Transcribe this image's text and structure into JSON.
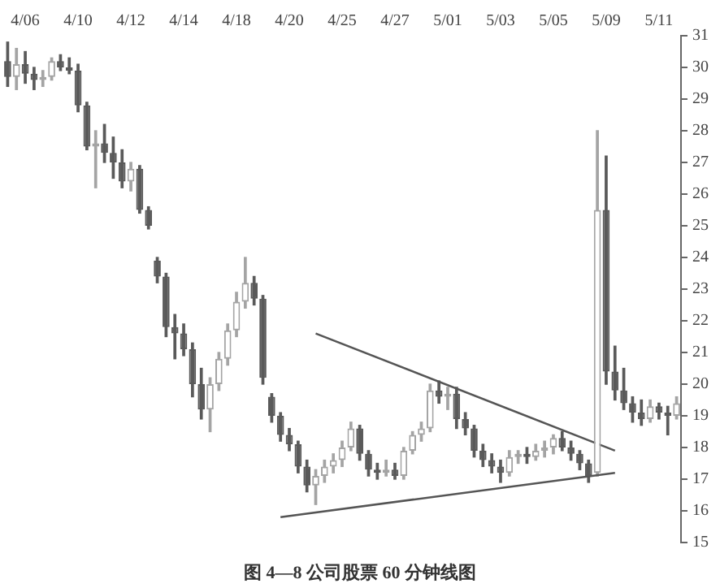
{
  "chart_data": {
    "type": "candlestick",
    "title": "图 4—8 公司股票 60 分钟线图",
    "categories": [
      null,
      null,
      "4/06",
      null,
      null,
      null,
      null,
      null,
      "4/10",
      null,
      null,
      null,
      null,
      null,
      "4/12",
      null,
      null,
      null,
      null,
      null,
      "4/14",
      null,
      null,
      null,
      null,
      null,
      "4/18",
      null,
      null,
      null,
      null,
      null,
      "4/20",
      null,
      null,
      null,
      null,
      null,
      "4/25",
      null,
      null,
      null,
      null,
      null,
      "4/27",
      null,
      null,
      null,
      null,
      null,
      "5/01",
      null,
      null,
      null,
      null,
      null,
      "5/03",
      null,
      null,
      null,
      null,
      null,
      "5/05",
      null,
      null,
      null,
      null,
      null,
      "5/09",
      null,
      null,
      null,
      null,
      null,
      "5/11",
      null,
      null
    ],
    "series": [
      {
        "type": "candlestick",
        "colors": [
          "#5a5a5a",
          "#a4a4a4",
          "#5a5a5a",
          "#5a5a5a",
          "#a4a4a4",
          "#a4a4a4",
          "#5a5a5a",
          "#5a5a5a",
          "#5a5a5a",
          "#5a5a5a",
          "#a4a4a4",
          "#5a5a5a",
          "#5a5a5a",
          "#5a5a5a",
          "#a4a4a4",
          "#5a5a5a",
          "#5a5a5a",
          "#5a5a5a",
          "#5a5a5a",
          "#5a5a5a",
          "#5a5a5a",
          "#5a5a5a",
          "#5a5a5a",
          "#a4a4a4",
          "#a4a4a4",
          "#a4a4a4",
          "#a4a4a4",
          "#a4a4a4",
          "#5a5a5a",
          "#5a5a5a",
          "#5a5a5a",
          "#5a5a5a",
          "#5a5a5a",
          "#5a5a5a",
          "#5a5a5a",
          "#a4a4a4",
          "#a4a4a4",
          "#a4a4a4",
          "#a4a4a4",
          "#a4a4a4",
          "#5a5a5a",
          "#5a5a5a",
          "#5a5a5a",
          "#a4a4a4",
          "#5a5a5a",
          "#a4a4a4",
          "#a4a4a4",
          "#a4a4a4",
          "#a4a4a4",
          "#5a5a5a",
          "#a4a4a4",
          "#5a5a5a",
          "#5a5a5a",
          "#5a5a5a",
          "#5a5a5a",
          "#5a5a5a",
          "#5a5a5a",
          "#a4a4a4",
          "#a4a4a4",
          "#5a5a5a",
          "#a4a4a4",
          "#a4a4a4",
          "#a4a4a4",
          "#5a5a5a",
          "#5a5a5a",
          "#5a5a5a",
          "#5a5a5a",
          "#a4a4a4",
          "#5a5a5a",
          "#5a5a5a",
          "#5a5a5a",
          "#5a5a5a",
          "#5a5a5a",
          "#a4a4a4",
          "#5a5a5a",
          "#5a5a5a",
          "#a4a4a4"
        ],
        "ohlc": [
          [
            30.2,
            30.8,
            29.4,
            29.7
          ],
          [
            29.7,
            30.6,
            29.3,
            30.1
          ],
          [
            30.1,
            30.5,
            29.5,
            29.8
          ],
          [
            29.8,
            30.0,
            29.3,
            29.6
          ],
          [
            29.6,
            29.9,
            29.4,
            29.7
          ],
          [
            29.7,
            30.3,
            29.6,
            30.2
          ],
          [
            30.2,
            30.4,
            29.9,
            30.0
          ],
          [
            30.0,
            30.3,
            29.8,
            29.9
          ],
          [
            29.9,
            30.1,
            28.6,
            28.8
          ],
          [
            28.8,
            28.9,
            27.4,
            27.5
          ],
          [
            27.5,
            28.0,
            26.2,
            27.6
          ],
          [
            27.6,
            28.2,
            27.0,
            27.3
          ],
          [
            27.3,
            27.8,
            26.5,
            27.0
          ],
          [
            27.0,
            27.4,
            26.2,
            26.4
          ],
          [
            26.4,
            27.0,
            26.1,
            26.8
          ],
          [
            26.8,
            26.9,
            25.4,
            25.5
          ],
          [
            25.5,
            25.6,
            24.9,
            25.0
          ],
          [
            23.9,
            24.0,
            23.2,
            23.4
          ],
          [
            23.4,
            23.5,
            21.5,
            21.8
          ],
          [
            21.8,
            22.2,
            20.8,
            21.6
          ],
          [
            21.6,
            21.9,
            20.9,
            21.1
          ],
          [
            21.1,
            21.3,
            19.6,
            20.0
          ],
          [
            20.0,
            20.5,
            18.9,
            19.2
          ],
          [
            19.2,
            20.2,
            18.5,
            20.0
          ],
          [
            20.0,
            21.0,
            19.8,
            20.8
          ],
          [
            20.8,
            21.9,
            20.6,
            21.7
          ],
          [
            21.7,
            22.9,
            21.5,
            22.6
          ],
          [
            22.6,
            24.0,
            22.4,
            23.2
          ],
          [
            23.2,
            23.4,
            22.5,
            22.7
          ],
          [
            22.7,
            22.8,
            20.0,
            20.2
          ],
          [
            19.6,
            19.7,
            18.8,
            19.0
          ],
          [
            19.0,
            19.1,
            18.2,
            18.4
          ],
          [
            18.4,
            18.6,
            17.9,
            18.1
          ],
          [
            18.1,
            18.2,
            17.2,
            17.4
          ],
          [
            17.4,
            17.6,
            16.6,
            16.8
          ],
          [
            16.8,
            17.3,
            16.2,
            17.1
          ],
          [
            17.1,
            17.6,
            16.9,
            17.4
          ],
          [
            17.4,
            17.8,
            17.2,
            17.6
          ],
          [
            17.6,
            18.2,
            17.4,
            18.0
          ],
          [
            18.0,
            18.8,
            17.9,
            18.6
          ],
          [
            18.6,
            18.7,
            17.6,
            17.8
          ],
          [
            17.8,
            17.9,
            17.1,
            17.3
          ],
          [
            17.3,
            17.5,
            17.0,
            17.2
          ],
          [
            17.2,
            17.6,
            17.1,
            17.3
          ],
          [
            17.3,
            17.5,
            17.0,
            17.1
          ],
          [
            17.1,
            18.0,
            17.0,
            17.9
          ],
          [
            17.9,
            18.5,
            17.8,
            18.4
          ],
          [
            18.4,
            18.8,
            18.2,
            18.6
          ],
          [
            18.6,
            20.0,
            18.5,
            19.8
          ],
          [
            19.8,
            20.1,
            19.4,
            19.6
          ],
          [
            19.6,
            19.9,
            19.2,
            19.7
          ],
          [
            19.7,
            19.9,
            18.6,
            18.9
          ],
          [
            18.9,
            19.1,
            18.4,
            18.6
          ],
          [
            18.6,
            18.7,
            17.7,
            17.9
          ],
          [
            17.9,
            18.1,
            17.4,
            17.6
          ],
          [
            17.6,
            17.8,
            17.2,
            17.4
          ],
          [
            17.4,
            17.6,
            16.9,
            17.2
          ],
          [
            17.2,
            17.9,
            17.1,
            17.7
          ],
          [
            17.7,
            17.9,
            17.5,
            17.8
          ],
          [
            17.8,
            18.0,
            17.5,
            17.7
          ],
          [
            17.7,
            18.1,
            17.6,
            17.9
          ],
          [
            17.9,
            18.2,
            17.7,
            18.0
          ],
          [
            18.0,
            18.4,
            17.8,
            18.3
          ],
          [
            18.3,
            18.5,
            17.9,
            18.0
          ],
          [
            18.0,
            18.2,
            17.6,
            17.8
          ],
          [
            17.8,
            17.9,
            17.3,
            17.5
          ],
          [
            17.5,
            17.6,
            16.9,
            17.1
          ],
          [
            17.2,
            28.0,
            17.1,
            25.5
          ],
          [
            25.5,
            27.2,
            20.0,
            20.4
          ],
          [
            20.4,
            21.2,
            19.5,
            19.8
          ],
          [
            19.8,
            20.5,
            19.2,
            19.4
          ],
          [
            19.4,
            19.6,
            18.8,
            19.1
          ],
          [
            19.1,
            19.5,
            18.7,
            18.9
          ],
          [
            18.9,
            19.5,
            18.8,
            19.3
          ],
          [
            19.3,
            19.4,
            18.9,
            19.1
          ],
          [
            19.1,
            19.3,
            18.4,
            19.0
          ],
          [
            19.0,
            19.6,
            18.9,
            19.4
          ]
        ]
      },
      {
        "type": "line",
        "color": "#555555",
        "values": [
          null,
          null,
          null,
          null,
          null,
          null,
          null,
          null,
          null,
          null,
          null,
          null,
          null,
          null,
          null,
          null,
          null,
          null,
          null,
          null,
          null,
          null,
          null,
          null,
          null,
          null,
          null,
          null,
          null,
          null,
          null,
          null,
          null,
          null,
          null,
          21.6,
          null,
          null,
          null,
          null,
          null,
          null,
          null,
          null,
          null,
          null,
          null,
          null,
          null,
          null,
          null,
          null,
          null,
          null,
          null,
          null,
          null,
          null,
          null,
          null,
          null,
          null,
          null,
          null,
          null,
          null,
          null,
          null,
          null,
          17.9,
          null,
          null,
          null,
          null,
          null,
          null,
          null
        ]
      },
      {
        "type": "line",
        "color": "#555555",
        "values": [
          null,
          null,
          null,
          null,
          null,
          null,
          null,
          null,
          null,
          null,
          null,
          null,
          null,
          null,
          null,
          null,
          null,
          null,
          null,
          null,
          null,
          null,
          null,
          null,
          null,
          null,
          null,
          null,
          null,
          null,
          null,
          15.8,
          null,
          null,
          null,
          null,
          null,
          null,
          null,
          null,
          null,
          null,
          null,
          null,
          null,
          null,
          null,
          null,
          null,
          null,
          null,
          null,
          null,
          null,
          null,
          null,
          null,
          null,
          null,
          null,
          null,
          null,
          null,
          null,
          null,
          null,
          null,
          null,
          null,
          17.2,
          null,
          null,
          null,
          null,
          null,
          null,
          null
        ]
      }
    ],
    "ylim": [
      15,
      31
    ],
    "yticks": [
      15,
      16,
      17,
      18,
      19,
      20,
      21,
      22,
      23,
      24,
      25,
      26,
      27,
      28,
      29,
      30,
      31
    ],
    "legend": false
  }
}
